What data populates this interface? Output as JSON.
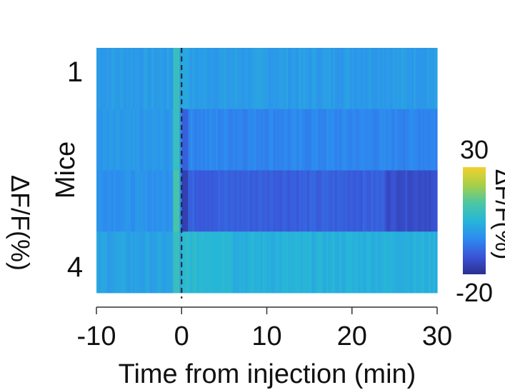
{
  "chart_data": {
    "type": "heatmap",
    "xlabel": "Time from injection (min)",
    "ylabel": "Mice",
    "xlim": [
      -10,
      30
    ],
    "x_ticks": [
      "-10",
      "0",
      "10",
      "20",
      "30"
    ],
    "y_tick_labels": [
      "1",
      "4"
    ],
    "rows": [
      "1",
      "2",
      "3",
      "4"
    ],
    "injection_time": 0,
    "injection_line": "dashed",
    "colorbar": {
      "label": "ΔF/F(%)",
      "min": -20,
      "max": 30,
      "max_label": "30",
      "min_label": "-20",
      "colors": [
        "#2b2f8f",
        "#3a55d8",
        "#2d8bf0",
        "#27b6d8",
        "#4cc7a2",
        "#a7cf47",
        "#f2d02e"
      ]
    },
    "mean_dff_per_row": [
      {
        "row": "1",
        "pre_injection": 0,
        "post_injection": 0
      },
      {
        "row": "2",
        "pre_injection": -1,
        "post_injection": -4
      },
      {
        "row": "3",
        "pre_injection": -2,
        "post_injection": -10
      },
      {
        "row": "4",
        "pre_injection": 1,
        "post_injection": 4
      }
    ]
  },
  "left_axis_title": "ΔF/F(%)"
}
